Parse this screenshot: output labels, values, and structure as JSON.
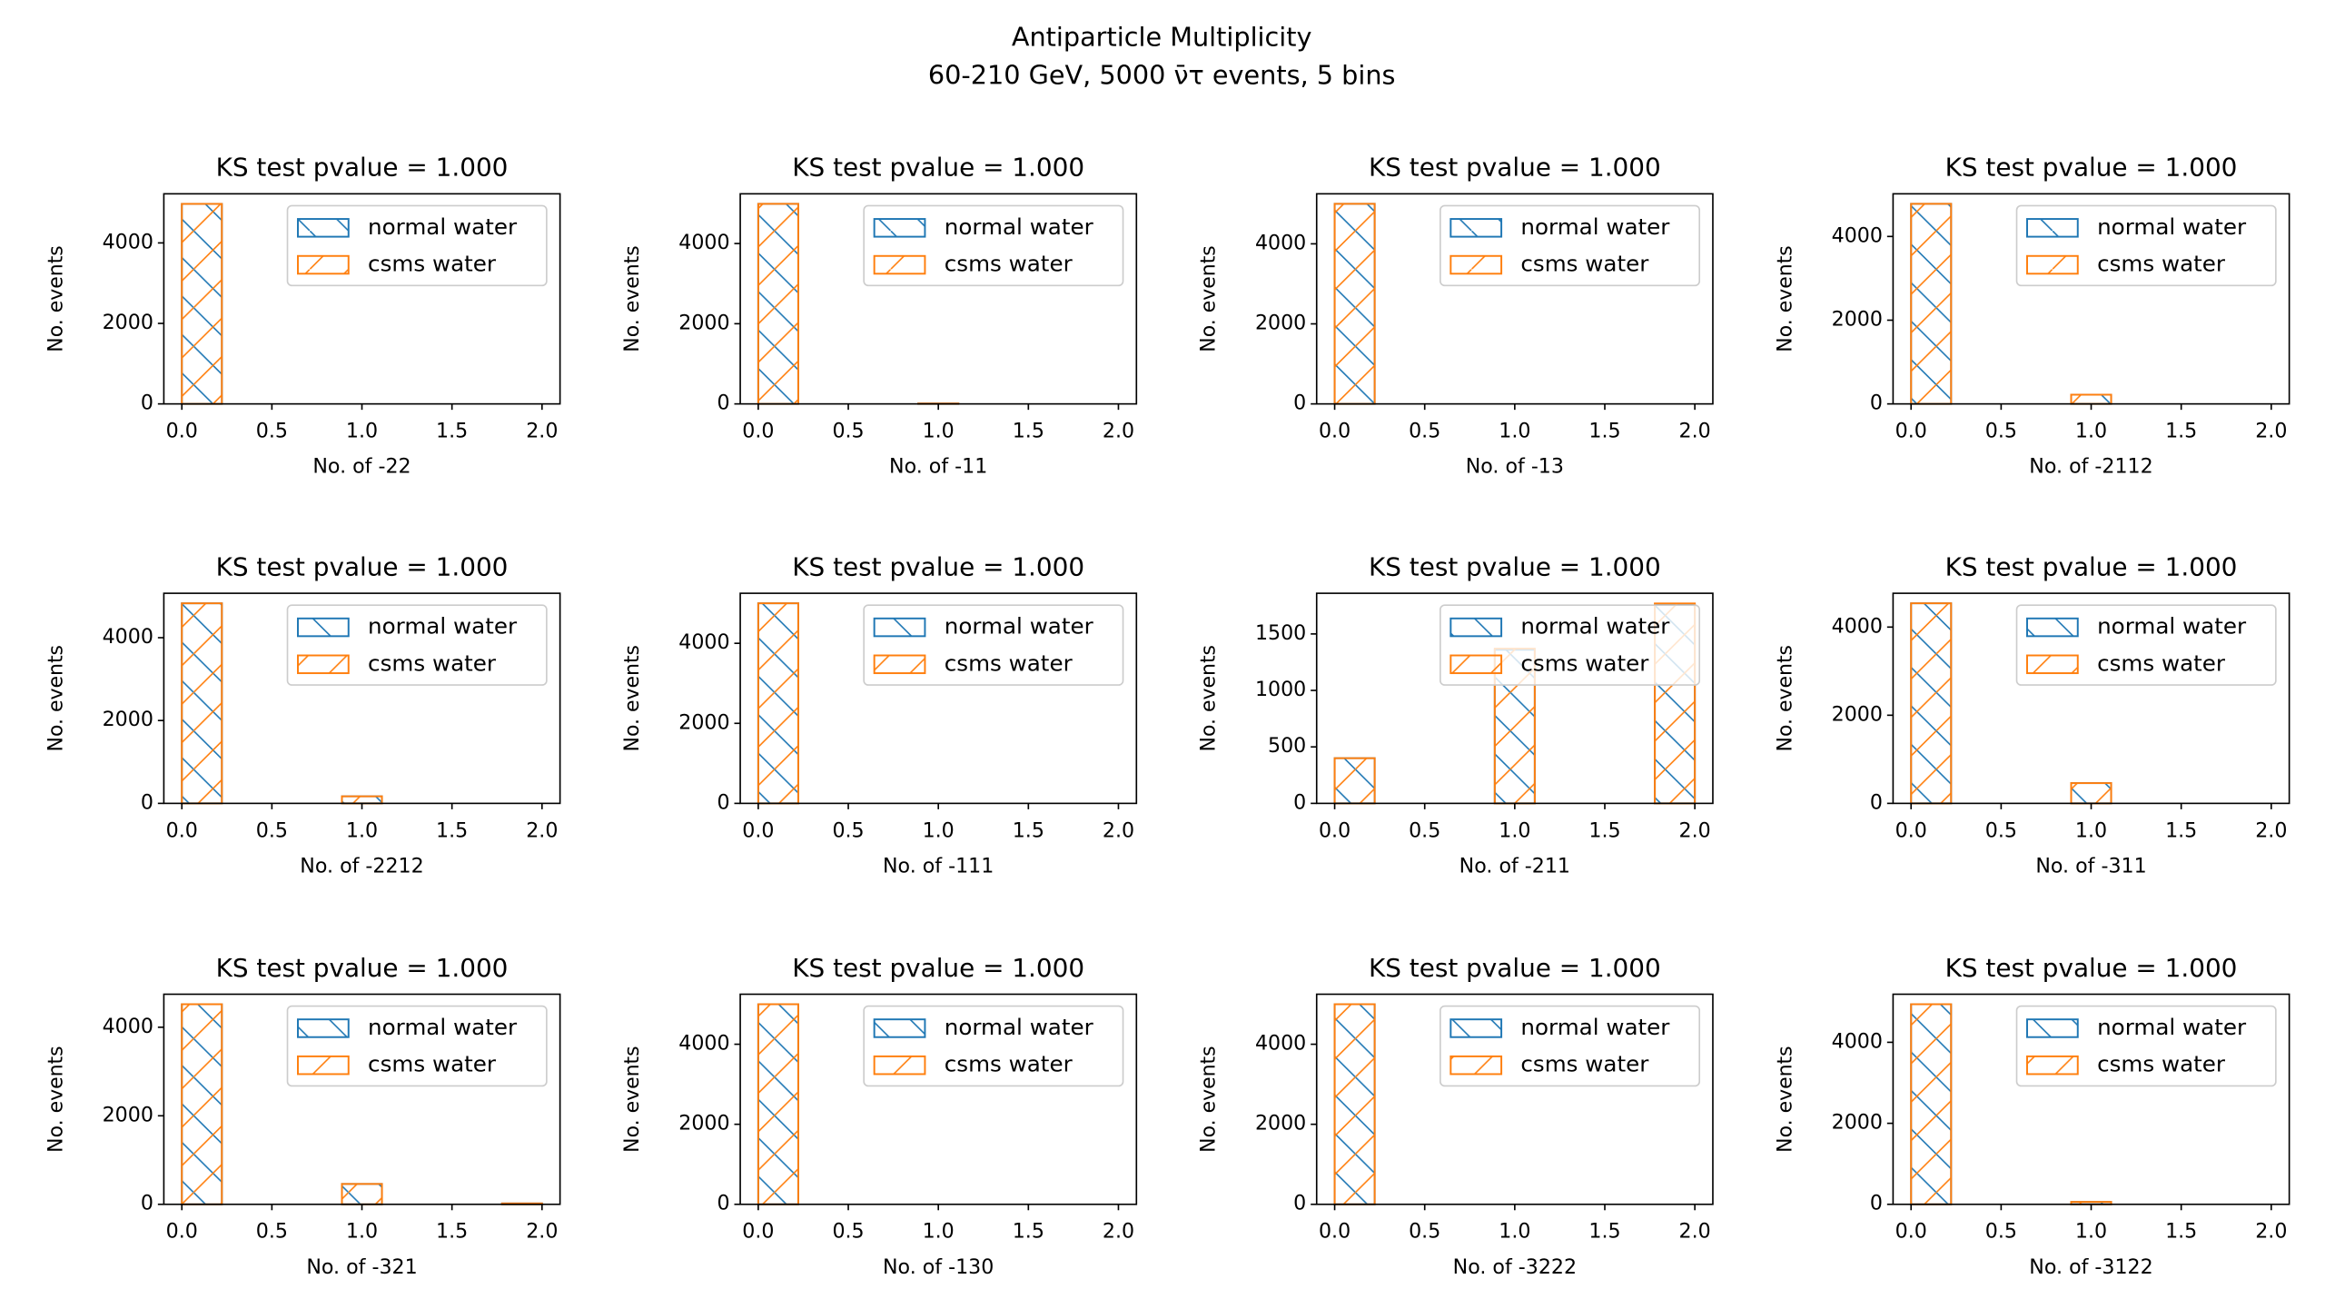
{
  "title": "Antiparticle Multiplicity",
  "subtitle": "60-210 GeV, 5000 ν̄τ events, 5 bins",
  "chart_data": [
    {
      "type": "histogram",
      "title": "KS test pvalue = 1.000",
      "xlabel": "No. of -22",
      "ylabel": "No. events",
      "bins": [
        0,
        0.2222,
        0.4444,
        0.6667,
        0.8889,
        1.1111,
        1.3333,
        1.5556,
        1.7778,
        2
      ],
      "series": [
        {
          "name": "normal water",
          "color": "#1f77b4",
          "values": [
            4970,
            0,
            0,
            0,
            0,
            0,
            0,
            0,
            0
          ]
        },
        {
          "name": "csms water",
          "color": "#ff7f0e",
          "values": [
            4970,
            0,
            0,
            0,
            0,
            0,
            0,
            0,
            0
          ]
        }
      ],
      "xlim": [
        -0.1,
        2.1
      ],
      "ylim": [
        0,
        5220
      ],
      "xticks": [
        {
          "value": 0,
          "label": "0.0"
        },
        0.5,
        {
          "value": 1,
          "label": "1.0"
        },
        1.5,
        {
          "value": 2,
          "label": "2.0"
        }
      ],
      "yticks": [
        0,
        2000,
        4000
      ],
      "legend": "upper right"
    },
    {
      "type": "histogram",
      "title": "KS test pvalue = 1.000",
      "xlabel": "No. of -11",
      "ylabel": "No. events",
      "bins": [
        0,
        0.2222,
        0.4444,
        0.6667,
        0.8889,
        1.1111,
        1.3333,
        1.5556,
        1.7778,
        2
      ],
      "series": [
        {
          "name": "normal water",
          "color": "#1f77b4",
          "values": [
            4990,
            0,
            0,
            0,
            10,
            0,
            0,
            0,
            0
          ]
        },
        {
          "name": "csms water",
          "color": "#ff7f0e",
          "values": [
            4990,
            0,
            0,
            0,
            10,
            0,
            0,
            0,
            0
          ]
        }
      ],
      "xlim": [
        -0.1,
        2.1
      ],
      "ylim": [
        0,
        5240
      ],
      "xticks": [
        {
          "value": 0,
          "label": "0.0"
        },
        0.5,
        {
          "value": 1,
          "label": "1.0"
        },
        1.5,
        {
          "value": 2,
          "label": "2.0"
        }
      ],
      "yticks": [
        0,
        2000,
        4000
      ],
      "legend": "upper right"
    },
    {
      "type": "histogram",
      "title": "KS test pvalue = 1.000",
      "xlabel": "No. of -13",
      "ylabel": "No. events",
      "bins": [
        0,
        0.2222,
        0.4444,
        0.6667,
        0.8889,
        1.1111,
        1.3333,
        1.5556,
        1.7778,
        2
      ],
      "series": [
        {
          "name": "normal water",
          "color": "#1f77b4",
          "values": [
            5000,
            0,
            0,
            0,
            0,
            0,
            0,
            0,
            0
          ]
        },
        {
          "name": "csms water",
          "color": "#ff7f0e",
          "values": [
            5000,
            0,
            0,
            0,
            0,
            0,
            0,
            0,
            0
          ]
        }
      ],
      "xlim": [
        -0.1,
        2.1
      ],
      "ylim": [
        0,
        5250
      ],
      "xticks": [
        {
          "value": 0,
          "label": "0.0"
        },
        0.5,
        {
          "value": 1,
          "label": "1.0"
        },
        1.5,
        {
          "value": 2,
          "label": "2.0"
        }
      ],
      "yticks": [
        0,
        2000,
        4000
      ],
      "legend": "upper right"
    },
    {
      "type": "histogram",
      "title": "KS test pvalue = 1.000",
      "xlabel": "No. of -2112",
      "ylabel": "No. events",
      "bins": [
        0,
        0.2222,
        0.4444,
        0.6667,
        0.8889,
        1.1111,
        1.3333,
        1.5556,
        1.7778,
        2
      ],
      "series": [
        {
          "name": "normal water",
          "color": "#1f77b4",
          "values": [
            4780,
            0,
            0,
            0,
            220,
            0,
            0,
            0,
            0
          ]
        },
        {
          "name": "csms water",
          "color": "#ff7f0e",
          "values": [
            4780,
            0,
            0,
            0,
            220,
            0,
            0,
            0,
            0
          ]
        }
      ],
      "xlim": [
        -0.1,
        2.1
      ],
      "ylim": [
        0,
        5019
      ],
      "xticks": [
        {
          "value": 0,
          "label": "0.0"
        },
        0.5,
        {
          "value": 1,
          "label": "1.0"
        },
        1.5,
        {
          "value": 2,
          "label": "2.0"
        }
      ],
      "yticks": [
        0,
        2000,
        4000
      ],
      "legend": "upper right"
    },
    {
      "type": "histogram",
      "title": "KS test pvalue = 1.000",
      "xlabel": "No. of -2212",
      "ylabel": "No. events",
      "bins": [
        0,
        0.2222,
        0.4444,
        0.6667,
        0.8889,
        1.1111,
        1.3333,
        1.5556,
        1.7778,
        2
      ],
      "series": [
        {
          "name": "normal water",
          "color": "#1f77b4",
          "values": [
            4830,
            0,
            0,
            0,
            170,
            0,
            0,
            0,
            0
          ]
        },
        {
          "name": "csms water",
          "color": "#ff7f0e",
          "values": [
            4830,
            0,
            0,
            0,
            170,
            0,
            0,
            0,
            0
          ]
        }
      ],
      "xlim": [
        -0.1,
        2.1
      ],
      "ylim": [
        0,
        5072
      ],
      "xticks": [
        {
          "value": 0,
          "label": "0.0"
        },
        0.5,
        {
          "value": 1,
          "label": "1.0"
        },
        1.5,
        {
          "value": 2,
          "label": "2.0"
        }
      ],
      "yticks": [
        0,
        2000,
        4000
      ],
      "legend": "upper right"
    },
    {
      "type": "histogram",
      "title": "KS test pvalue = 1.000",
      "xlabel": "No. of -111",
      "ylabel": "No. events",
      "bins": [
        0,
        0.2222,
        0.4444,
        0.6667,
        0.8889,
        1.1111,
        1.3333,
        1.5556,
        1.7778,
        2
      ],
      "series": [
        {
          "name": "normal water",
          "color": "#1f77b4",
          "values": [
            5000,
            0,
            0,
            0,
            0,
            0,
            0,
            0,
            0
          ]
        },
        {
          "name": "csms water",
          "color": "#ff7f0e",
          "values": [
            5000,
            0,
            0,
            0,
            0,
            0,
            0,
            0,
            0
          ]
        }
      ],
      "xlim": [
        -0.1,
        2.1
      ],
      "ylim": [
        0,
        5250
      ],
      "xticks": [
        {
          "value": 0,
          "label": "0.0"
        },
        0.5,
        {
          "value": 1,
          "label": "1.0"
        },
        1.5,
        {
          "value": 2,
          "label": "2.0"
        }
      ],
      "yticks": [
        0,
        2000,
        4000
      ],
      "legend": "upper right"
    },
    {
      "type": "histogram",
      "title": "KS test pvalue = 1.000",
      "xlabel": "No. of -211",
      "ylabel": "No. events",
      "bins": [
        0,
        0.2222,
        0.4444,
        0.6667,
        0.8889,
        1.1111,
        1.3333,
        1.5556,
        1.7778,
        2
      ],
      "series": [
        {
          "name": "normal water",
          "color": "#1f77b4",
          "values": [
            400,
            0,
            0,
            0,
            1360,
            0,
            0,
            0,
            1760
          ]
        },
        {
          "name": "csms water",
          "color": "#ff7f0e",
          "values": [
            400,
            0,
            0,
            0,
            1370,
            0,
            0,
            0,
            1770
          ]
        }
      ],
      "xlim": [
        -0.1,
        2.1
      ],
      "ylim": [
        0,
        1860
      ],
      "xticks": [
        {
          "value": 0,
          "label": "0.0"
        },
        0.5,
        {
          "value": 1,
          "label": "1.0"
        },
        1.5,
        {
          "value": 2,
          "label": "2.0"
        }
      ],
      "yticks": [
        0,
        500,
        1000,
        1500
      ],
      "legend": "upper right"
    },
    {
      "type": "histogram",
      "title": "KS test pvalue = 1.000",
      "xlabel": "No. of -311",
      "ylabel": "No. events",
      "bins": [
        0,
        0.2222,
        0.4444,
        0.6667,
        0.8889,
        1.1111,
        1.3333,
        1.5556,
        1.7778,
        2
      ],
      "series": [
        {
          "name": "normal water",
          "color": "#1f77b4",
          "values": [
            4540,
            0,
            0,
            0,
            460,
            0,
            0,
            0,
            0
          ]
        },
        {
          "name": "csms water",
          "color": "#ff7f0e",
          "values": [
            4540,
            0,
            0,
            0,
            460,
            0,
            0,
            0,
            0
          ]
        }
      ],
      "xlim": [
        -0.1,
        2.1
      ],
      "ylim": [
        0,
        4767
      ],
      "xticks": [
        {
          "value": 0,
          "label": "0.0"
        },
        0.5,
        {
          "value": 1,
          "label": "1.0"
        },
        1.5,
        {
          "value": 2,
          "label": "2.0"
        }
      ],
      "yticks": [
        0,
        2000,
        4000
      ],
      "legend": "upper right"
    },
    {
      "type": "histogram",
      "title": "KS test pvalue = 1.000",
      "xlabel": "No. of -321",
      "ylabel": "No. events",
      "bins": [
        0,
        0.2222,
        0.4444,
        0.6667,
        0.8889,
        1.1111,
        1.3333,
        1.5556,
        1.7778,
        2
      ],
      "series": [
        {
          "name": "normal water",
          "color": "#1f77b4",
          "values": [
            4520,
            0,
            0,
            0,
            460,
            0,
            0,
            0,
            20
          ]
        },
        {
          "name": "csms water",
          "color": "#ff7f0e",
          "values": [
            4520,
            0,
            0,
            0,
            460,
            0,
            0,
            0,
            20
          ]
        }
      ],
      "xlim": [
        -0.1,
        2.1
      ],
      "ylim": [
        0,
        4746
      ],
      "xticks": [
        {
          "value": 0,
          "label": "0.0"
        },
        0.5,
        {
          "value": 1,
          "label": "1.0"
        },
        1.5,
        {
          "value": 2,
          "label": "2.0"
        }
      ],
      "yticks": [
        0,
        2000,
        4000
      ],
      "legend": "upper right"
    },
    {
      "type": "histogram",
      "title": "KS test pvalue = 1.000",
      "xlabel": "No. of -130",
      "ylabel": "No. events",
      "bins": [
        0,
        0.2222,
        0.4444,
        0.6667,
        0.8889,
        1.1111,
        1.3333,
        1.5556,
        1.7778,
        2
      ],
      "series": [
        {
          "name": "normal water",
          "color": "#1f77b4",
          "values": [
            5000,
            0,
            0,
            0,
            0,
            0,
            0,
            0,
            0
          ]
        },
        {
          "name": "csms water",
          "color": "#ff7f0e",
          "values": [
            5000,
            0,
            0,
            0,
            0,
            0,
            0,
            0,
            0
          ]
        }
      ],
      "xlim": [
        -0.1,
        2.1
      ],
      "ylim": [
        0,
        5250
      ],
      "xticks": [
        {
          "value": 0,
          "label": "0.0"
        },
        0.5,
        {
          "value": 1,
          "label": "1.0"
        },
        1.5,
        {
          "value": 2,
          "label": "2.0"
        }
      ],
      "yticks": [
        0,
        2000,
        4000
      ],
      "legend": "upper right"
    },
    {
      "type": "histogram",
      "title": "KS test pvalue = 1.000",
      "xlabel": "No. of -3222",
      "ylabel": "No. events",
      "bins": [
        0,
        0.2222,
        0.4444,
        0.6667,
        0.8889,
        1.1111,
        1.3333,
        1.5556,
        1.7778,
        2
      ],
      "series": [
        {
          "name": "normal water",
          "color": "#1f77b4",
          "values": [
            5000,
            0,
            0,
            0,
            0,
            0,
            0,
            0,
            0
          ]
        },
        {
          "name": "csms water",
          "color": "#ff7f0e",
          "values": [
            5000,
            0,
            0,
            0,
            0,
            0,
            0,
            0,
            0
          ]
        }
      ],
      "xlim": [
        -0.1,
        2.1
      ],
      "ylim": [
        0,
        5250
      ],
      "xticks": [
        {
          "value": 0,
          "label": "0.0"
        },
        0.5,
        {
          "value": 1,
          "label": "1.0"
        },
        1.5,
        {
          "value": 2,
          "label": "2.0"
        }
      ],
      "yticks": [
        0,
        2000,
        4000
      ],
      "legend": "upper right"
    },
    {
      "type": "histogram",
      "title": "KS test pvalue = 1.000",
      "xlabel": "No. of -3122",
      "ylabel": "No. events",
      "bins": [
        0,
        0.2222,
        0.4444,
        0.6667,
        0.8889,
        1.1111,
        1.3333,
        1.5556,
        1.7778,
        2
      ],
      "series": [
        {
          "name": "normal water",
          "color": "#1f77b4",
          "values": [
            4940,
            0,
            0,
            0,
            60,
            0,
            0,
            0,
            0
          ]
        },
        {
          "name": "csms water",
          "color": "#ff7f0e",
          "values": [
            4940,
            0,
            0,
            0,
            60,
            0,
            0,
            0,
            0
          ]
        }
      ],
      "xlim": [
        -0.1,
        2.1
      ],
      "ylim": [
        0,
        5187
      ],
      "xticks": [
        {
          "value": 0,
          "label": "0.0"
        },
        0.5,
        {
          "value": 1,
          "label": "1.0"
        },
        1.5,
        {
          "value": 2,
          "label": "2.0"
        }
      ],
      "yticks": [
        0,
        2000,
        4000
      ],
      "legend": "upper right"
    }
  ]
}
